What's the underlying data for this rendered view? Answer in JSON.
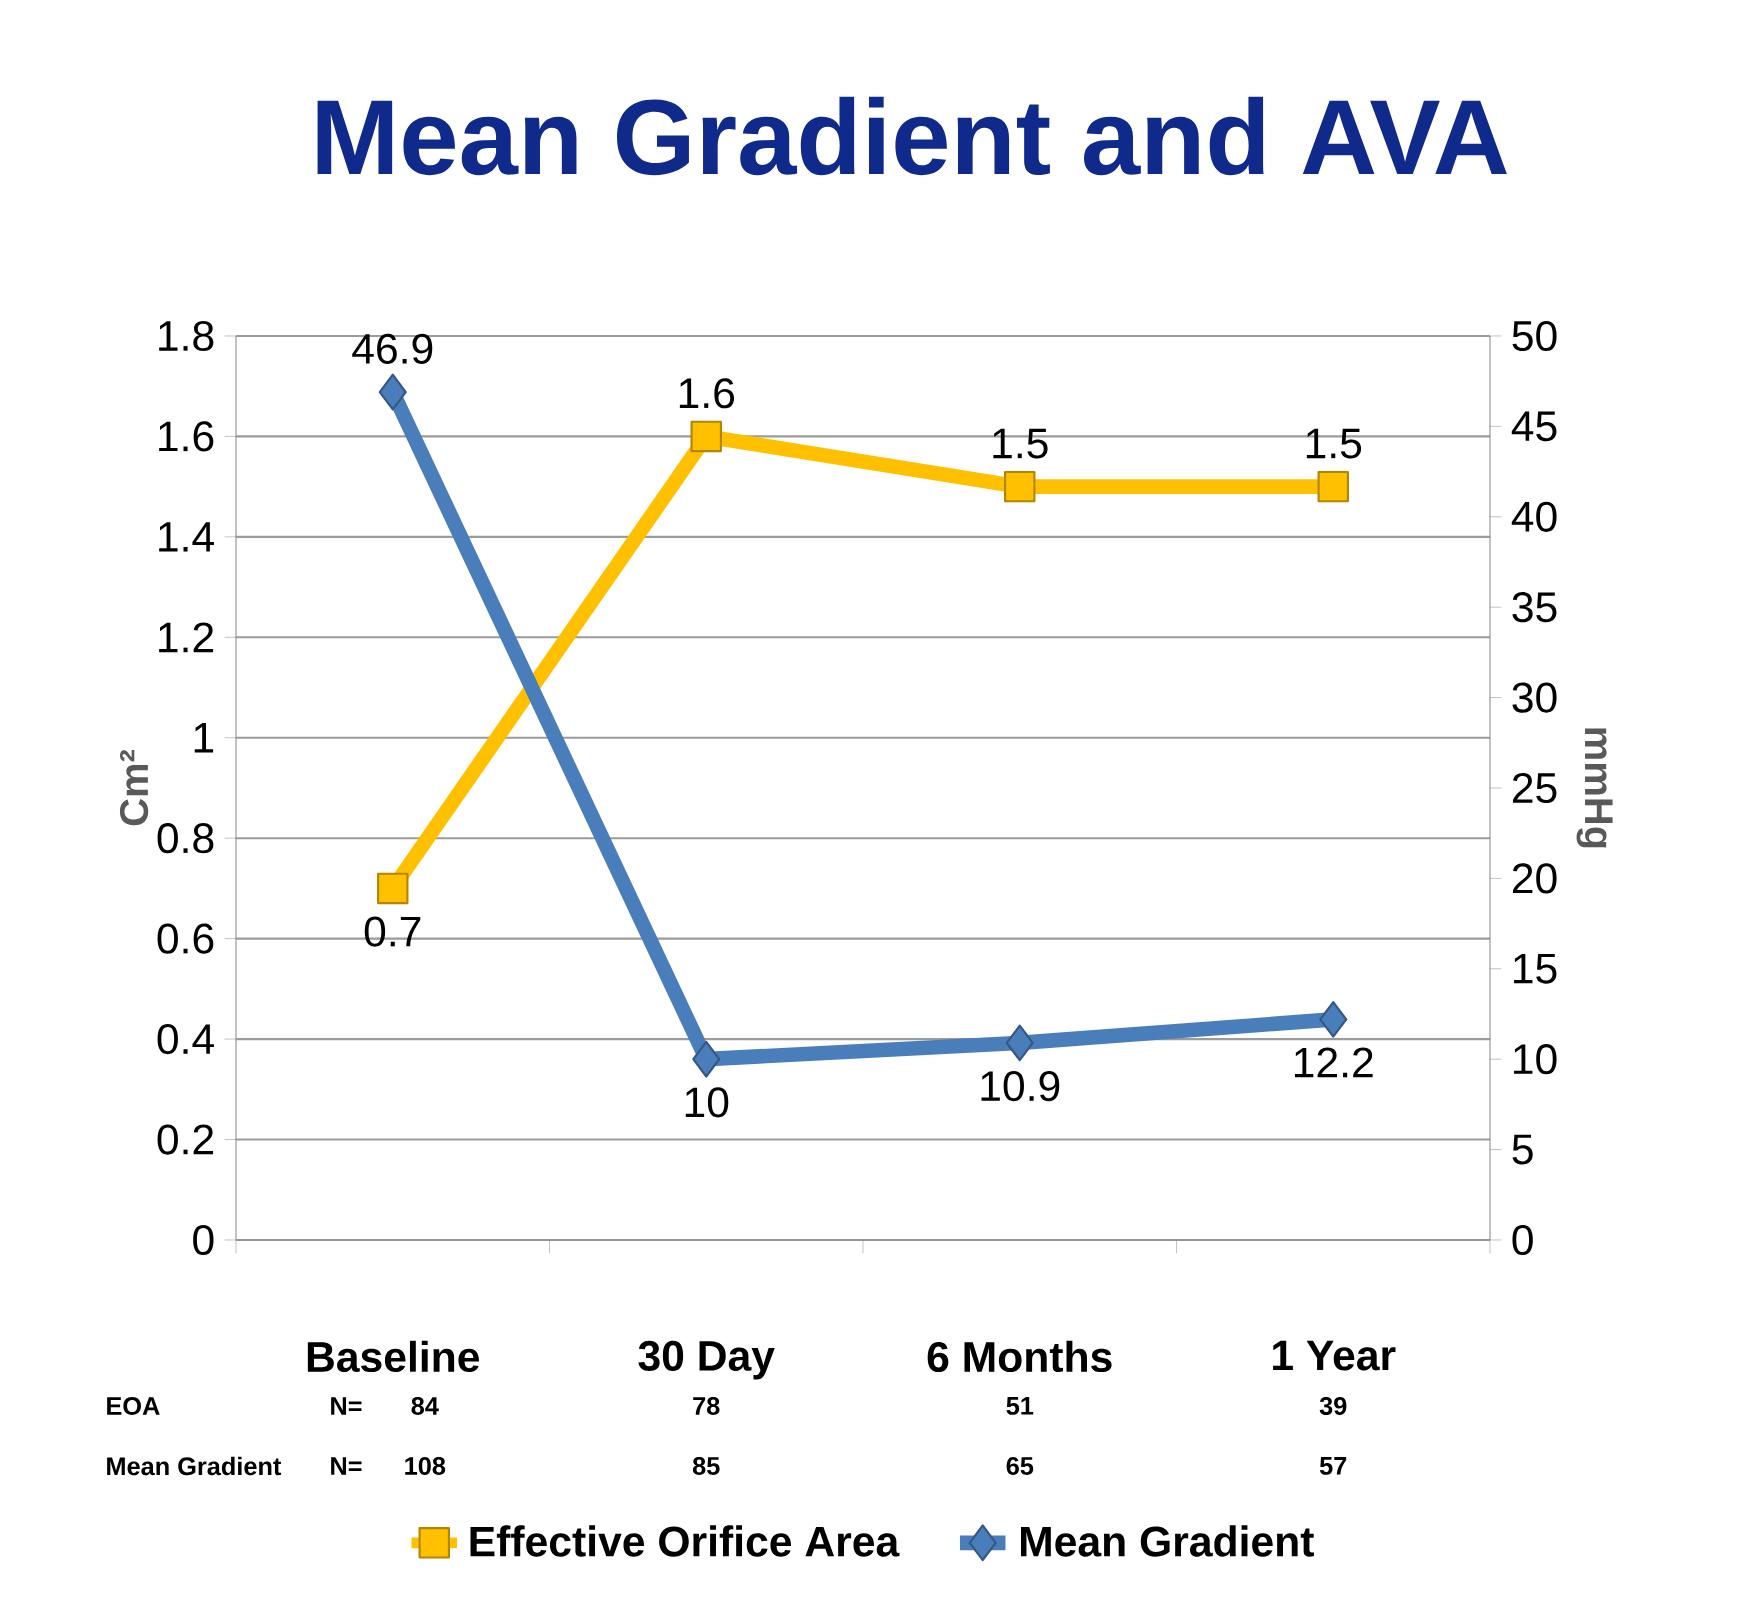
{
  "chart_data": {
    "type": "line",
    "title": "Mean Gradient and AVA",
    "categories": [
      "Baseline",
      "30 Day",
      "6 Months",
      "1 Year"
    ],
    "series": [
      {
        "name": "Effective Orifice Area",
        "color": "#ffc000",
        "values": [
          0.7,
          1.6,
          1.5,
          1.5
        ],
        "marker": "square"
      },
      {
        "name": "Mean Gradient",
        "color": "#4a7ebb",
        "values": [
          46.9,
          10,
          10.9,
          12.2
        ],
        "marker": "diamond",
        "axis": "y2"
      }
    ],
    "ylabel": "Cm²",
    "y2label": "mmHg",
    "ylim": [
      0,
      1.8
    ],
    "yticks": [
      0,
      0.2,
      0.4,
      0.6,
      0.8,
      1,
      1.2,
      1.4,
      1.6,
      1.8
    ],
    "y2lim": [
      0,
      50
    ],
    "y2ticks": [
      0,
      5,
      10,
      15,
      20,
      25,
      30,
      35,
      40,
      45,
      50
    ],
    "data_labels": true,
    "grid": "y",
    "legend": "bottom",
    "annotations": [
      "EOA",
      "N=",
      "84",
      "78",
      "51",
      "39",
      "Mean Gradient",
      "N=",
      "108",
      "85",
      "65",
      "57"
    ]
  }
}
